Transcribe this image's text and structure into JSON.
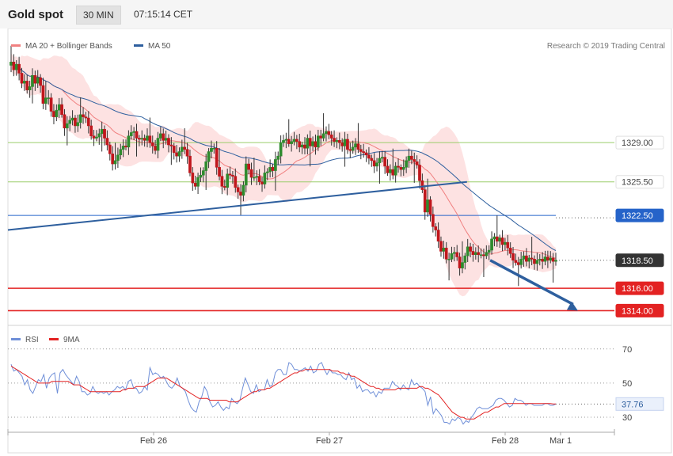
{
  "header": {
    "title": "Gold spot",
    "timeframe": "30 MIN",
    "time": "07:15:14 CET"
  },
  "chart_data": [
    {
      "type": "candlestick",
      "legend": [
        {
          "name": "MA 20 + Bollinger Bands",
          "color": "#f08080"
        },
        {
          "name": "MA 50",
          "color": "#2e5f9e"
        }
      ],
      "credit": "Research © 2019 Trading Central",
      "x_labels": [
        "Feb 26",
        "Feb 27",
        "Feb 28",
        "Mar 1"
      ],
      "price_range": [
        1312.9,
        1338.2
      ],
      "levels": [
        {
          "label": "1329.00",
          "value": 1329.0,
          "color": "#9acd6a",
          "style": "support-resistance"
        },
        {
          "label": "1325.50",
          "value": 1325.5,
          "color": "#9acd6a",
          "style": "support-resistance"
        },
        {
          "label": "1322.50",
          "value": 1322.5,
          "color": "#2563c9",
          "style": "key-level"
        },
        {
          "label": "1318.50",
          "value": 1318.5,
          "color": "#333333",
          "style": "last-price"
        },
        {
          "label": "1316.00",
          "value": 1316.0,
          "color": "#e32222",
          "style": "target"
        },
        {
          "label": "1314.00",
          "value": 1314.0,
          "color": "#e32222",
          "style": "target"
        }
      ],
      "trendline": {
        "color": "#2e5f9e",
        "from": [
          0,
          1321.2
        ],
        "to": [
          0.837,
          1325.5
        ]
      },
      "forecast_arrow": {
        "color": "#2e5f9e",
        "from": [
          0.792,
          1318.5
        ],
        "to": [
          0.937,
          1314.0
        ]
      },
      "series": [
        {
          "name": "Close",
          "values": [
            1336.2,
            1335.5,
            1336.0,
            1335.2,
            1334.3,
            1334.5,
            1333.7,
            1334.0,
            1335.0,
            1334.3,
            1334.8,
            1334.1,
            1332.5,
            1333.0,
            1333.0,
            1331.8,
            1331.3,
            1331.9,
            1332.4,
            1331.5,
            1330.3,
            1330.7,
            1331.0,
            1331.2,
            1330.5,
            1330.8,
            1331.5,
            1331.3,
            1331.2,
            1330.5,
            1329.6,
            1329.4,
            1329.5,
            1329.8,
            1330.2,
            1329.4,
            1328.8,
            1328.0,
            1327.1,
            1327.4,
            1327.9,
            1328.4,
            1328.7,
            1328.6,
            1329.6,
            1329.9,
            1330.0,
            1329.4,
            1329.3,
            1329.4,
            1329.2,
            1329.6,
            1329.0,
            1328.7,
            1328.3,
            1329.4,
            1329.8,
            1329.2,
            1329.4,
            1328.8,
            1328.7,
            1328.1,
            1327.8,
            1328.2,
            1328.6,
            1328.4,
            1327.8,
            1326.3,
            1325.4,
            1325.1,
            1325.9,
            1326.1,
            1326.5,
            1327.3,
            1328.2,
            1328.5,
            1328.5,
            1326.8,
            1326.0,
            1325.1,
            1325.0,
            1326.2,
            1326.1,
            1326.0,
            1325.0,
            1324.6,
            1324.3,
            1325.2,
            1327.1,
            1326.6,
            1325.9,
            1325.9,
            1326.0,
            1325.5,
            1325.3,
            1326.3,
            1326.4,
            1326.8,
            1326.5,
            1327.5,
            1327.8,
            1329.0,
            1329.2,
            1329.3,
            1328.9,
            1329.1,
            1329.3,
            1329.1,
            1328.6,
            1328.8,
            1328.5,
            1329.4,
            1328.7,
            1329.1,
            1328.6,
            1329.6,
            1329.4,
            1329.8,
            1330.0,
            1329.7,
            1329.4,
            1329.1,
            1329.2,
            1329.0,
            1328.7,
            1329.3,
            1328.4,
            1328.3,
            1328.6,
            1328.9,
            1328.4,
            1328.2,
            1328.1,
            1327.9,
            1327.6,
            1327.4,
            1326.9,
            1327.2,
            1327.6,
            1327.7,
            1326.9,
            1326.3,
            1326.6,
            1326.1,
            1326.9,
            1326.8,
            1326.6,
            1326.8,
            1327.4,
            1327.8,
            1327.5,
            1327.3,
            1327.0,
            1325.6,
            1324.8,
            1322.8,
            1323.9,
            1322.6,
            1321.5,
            1321.2,
            1320.2,
            1319.3,
            1319.6,
            1318.6,
            1318.6,
            1319.1,
            1319.2,
            1318.8,
            1317.8,
            1318.3,
            1318.9,
            1319.7,
            1319.3,
            1319.0,
            1319.2,
            1319.0,
            1319.0,
            1318.9,
            1319.2,
            1319.4,
            1320.4,
            1320.6,
            1320.2,
            1320.5,
            1319.9,
            1320.1,
            1319.6,
            1319.1,
            1318.5,
            1318.3,
            1318.1,
            1318.6,
            1318.9,
            1318.4,
            1318.7,
            1318.6,
            1318.2,
            1318.5,
            1318.6,
            1318.4,
            1318.8,
            1318.5,
            1318.7,
            1318.4,
            1318.5
          ]
        }
      ]
    },
    {
      "type": "line",
      "legend": [
        {
          "name": "RSI",
          "color": "#6f8fd8"
        },
        {
          "name": "9MA",
          "color": "#e32222"
        }
      ],
      "y_ticks": [
        70,
        50,
        30
      ],
      "ylim": [
        24,
        75
      ],
      "last_value": "37.76",
      "series": [
        {
          "name": "RSI",
          "values": [
            61,
            57,
            58,
            56,
            54,
            49,
            52,
            46,
            44,
            48,
            52,
            51,
            55,
            47,
            53,
            55,
            56,
            44,
            56,
            58,
            55,
            53,
            51,
            49,
            54,
            51,
            45,
            45,
            43,
            44,
            48,
            45,
            44,
            45,
            44,
            45,
            43,
            45,
            46,
            48,
            47,
            48,
            46,
            51,
            52,
            47,
            47,
            44,
            45,
            48,
            46,
            59,
            55,
            56,
            55,
            53,
            54,
            51,
            48,
            47,
            49,
            53,
            48,
            47,
            45,
            40,
            36,
            34,
            33,
            39,
            42,
            48,
            45,
            39,
            36,
            37,
            39,
            36,
            34,
            36,
            35,
            41,
            39,
            38,
            40,
            47,
            53,
            49,
            45,
            44,
            49,
            45,
            46,
            46,
            52,
            48,
            49,
            56,
            58,
            58,
            55,
            55,
            62,
            61,
            58,
            58,
            57,
            58,
            59,
            57,
            60,
            56,
            57,
            61,
            62,
            58,
            55,
            58,
            56,
            56,
            55,
            55,
            53,
            52,
            56,
            52,
            53,
            47,
            49,
            45,
            46,
            46,
            44,
            45,
            42,
            45,
            44,
            47,
            47,
            47,
            51,
            49,
            48,
            46,
            49,
            47,
            46,
            52,
            49,
            50,
            48,
            47,
            45,
            37,
            42,
            32,
            35,
            33,
            31,
            27,
            27,
            26,
            29,
            28,
            30,
            29,
            26,
            28,
            27,
            30,
            32,
            35,
            36,
            35,
            35,
            35,
            36,
            37,
            40,
            41,
            41,
            40,
            38,
            36,
            37,
            41,
            40,
            40,
            39,
            37,
            38,
            38,
            37,
            37,
            37,
            37,
            38,
            38,
            37,
            37,
            37.76
          ]
        },
        {
          "name": "9MA",
          "values": [
            60,
            59,
            58,
            57,
            56,
            55,
            54,
            53,
            52,
            51,
            50,
            50,
            50,
            50,
            50,
            51,
            51,
            51,
            51,
            51,
            51,
            51,
            50,
            49,
            49,
            49,
            48,
            47,
            46,
            45,
            45,
            45,
            45,
            45,
            45,
            45,
            45,
            45,
            45,
            45,
            45,
            46,
            46,
            47,
            47,
            47,
            48,
            48,
            48,
            48,
            49,
            50,
            51,
            52,
            53,
            53,
            53,
            53,
            52,
            51,
            50,
            49,
            48,
            47,
            46,
            45,
            44,
            43,
            42,
            41,
            41,
            41,
            41,
            40,
            40,
            40,
            40,
            40,
            40,
            40,
            39,
            39,
            39,
            39,
            40,
            41,
            42,
            43,
            44,
            45,
            45,
            46,
            46,
            46,
            47,
            47,
            48,
            49,
            50,
            51,
            52,
            53,
            54,
            55,
            56,
            56,
            57,
            57,
            58,
            58,
            58,
            58,
            58,
            58,
            58,
            58,
            58,
            58,
            57,
            57,
            57,
            56,
            56,
            55,
            55,
            54,
            54,
            53,
            52,
            51,
            50,
            49,
            48,
            48,
            47,
            47,
            46,
            46,
            46,
            46,
            46,
            46,
            47,
            47,
            47,
            47,
            47,
            47,
            47,
            47,
            48,
            48,
            47,
            47,
            46,
            45,
            44,
            43,
            41,
            39,
            37,
            35,
            33,
            32,
            31,
            30,
            30,
            29,
            29,
            29,
            29,
            30,
            31,
            32,
            33,
            33,
            34,
            35,
            36,
            36,
            37,
            38,
            38,
            38,
            38,
            38,
            38,
            38,
            38,
            38,
            38,
            38,
            38,
            38,
            38,
            38,
            38,
            38,
            38,
            37.8,
            37.8
          ]
        }
      ]
    }
  ]
}
